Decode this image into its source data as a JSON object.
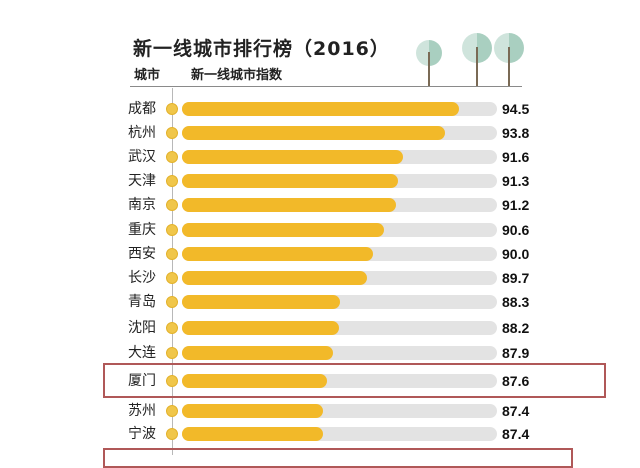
{
  "title": "新一线城市排行榜（2016）",
  "header": {
    "city_col": "城市",
    "index_col": "新一线城市指数"
  },
  "colors": {
    "bar": "#f2b929",
    "track": "#e3e3e3",
    "highlight": "#b05858",
    "tree": "#a9cfc0"
  },
  "chart_data": {
    "type": "bar",
    "orientation": "horizontal",
    "title": "新一线城市排行榜（2016）",
    "xlabel": "新一线城市指数",
    "ylabel": "城市",
    "categories": [
      "成都",
      "杭州",
      "武汉",
      "天津",
      "南京",
      "重庆",
      "西安",
      "长沙",
      "青岛",
      "沈阳",
      "大连",
      "厦门",
      "苏州",
      "宁波"
    ],
    "values": [
      94.5,
      93.8,
      91.6,
      91.3,
      91.2,
      90.6,
      90.0,
      89.7,
      88.3,
      88.2,
      87.9,
      87.6,
      87.4,
      87.4
    ],
    "highlighted": [
      "厦门"
    ],
    "grid": false,
    "legend": null
  },
  "rows": [
    {
      "city": "成都",
      "value": "94.5"
    },
    {
      "city": "杭州",
      "value": "93.8"
    },
    {
      "city": "武汉",
      "value": "91.6"
    },
    {
      "city": "天津",
      "value": "91.3"
    },
    {
      "city": "南京",
      "value": "91.2"
    },
    {
      "city": "重庆",
      "value": "90.6"
    },
    {
      "city": "西安",
      "value": "90.0"
    },
    {
      "city": "长沙",
      "value": "89.7"
    },
    {
      "city": "青岛",
      "value": "88.3"
    },
    {
      "city": "沈阳",
      "value": "88.2"
    },
    {
      "city": "大连",
      "value": "87.9"
    },
    {
      "city": "厦门",
      "value": "87.6"
    },
    {
      "city": "苏州",
      "value": "87.4"
    },
    {
      "city": "宁波",
      "value": "87.4"
    }
  ]
}
